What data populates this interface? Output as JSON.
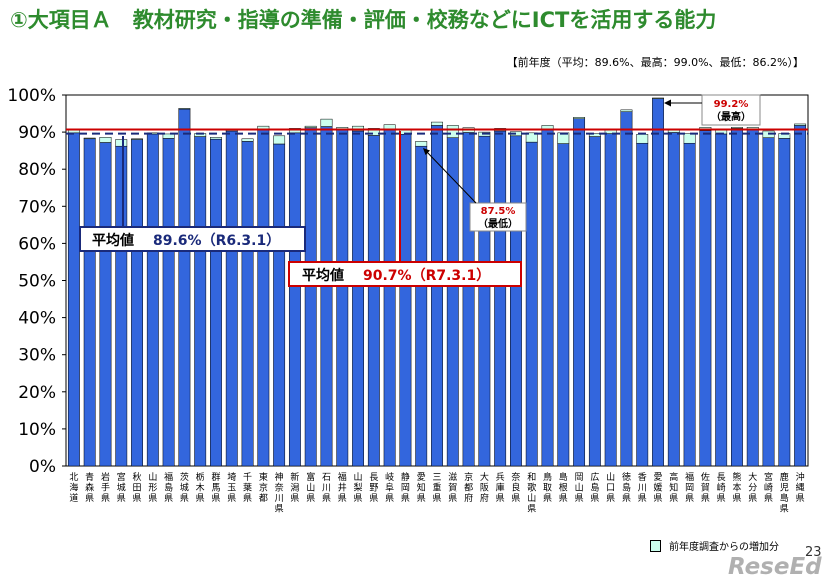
{
  "slide": {
    "title": "①大項目Ａ　教材研究・指導の準備・評価・校務などにICTを活用する能力",
    "prev_year_note": "【前年度（平均：89.6%、最高：99.0%、最低：86.2%）】",
    "legend_label": "前年度調査からの増加分",
    "page_number": "23",
    "logo_text": "ReseEd"
  },
  "colors": {
    "bar": "#3366dd",
    "bar_increase": "#ccffee",
    "title": "#2e8b2e",
    "avg_line_current": "#cc0000",
    "avg_line_prev": "#1a2a7a"
  },
  "chart_data": {
    "type": "bar",
    "categories": [
      "北海道",
      "青森県",
      "岩手県",
      "宮城県",
      "秋田県",
      "山形県",
      "福島県",
      "茨城県",
      "栃木県",
      "群馬県",
      "埼玉県",
      "千葉県",
      "東京都",
      "神奈川県",
      "新潟県",
      "富山県",
      "石川県",
      "福井県",
      "山梨県",
      "長野県",
      "岐阜県",
      "静岡県",
      "愛知県",
      "三重県",
      "滋賀県",
      "京都府",
      "大阪府",
      "兵庫県",
      "奈良県",
      "和歌山県",
      "鳥取県",
      "島根県",
      "岡山県",
      "広島県",
      "山口県",
      "徳島県",
      "香川県",
      "愛媛県",
      "高知県",
      "福岡県",
      "佐賀県",
      "長崎県",
      "熊本県",
      "大分県",
      "宮崎県",
      "鹿児島県",
      "沖縄県"
    ],
    "series": [
      {
        "values": [
          89.8,
          88.2,
          87.2,
          86.2,
          88.0,
          89.5,
          88.3,
          96.2,
          88.8,
          88.1,
          90.3,
          87.5,
          90.5,
          86.8,
          89.8,
          91.2,
          91.5,
          90.6,
          90.3,
          89.1,
          90.6,
          89.4,
          86.2,
          91.8,
          88.5,
          89.9,
          88.9,
          90.3,
          89.0,
          87.3,
          90.8,
          86.9,
          93.6,
          88.8,
          89.6,
          95.5,
          87.0,
          99.0,
          89.9,
          87.0,
          90.4,
          89.5,
          91.0,
          90.7,
          88.5,
          88.3,
          91.8
        ]
      },
      {
        "values": [
          90.9,
          88.4,
          88.6,
          88.0,
          88.2,
          89.8,
          89.5,
          96.4,
          89.6,
          88.6,
          90.5,
          88.2,
          91.6,
          89.0,
          91.0,
          91.6,
          93.5,
          91.3,
          91.6,
          91.0,
          92.0,
          90.5,
          87.5,
          92.7,
          91.8,
          91.2,
          90.0,
          91.0,
          90.1,
          89.8,
          91.8,
          89.8,
          94.0,
          89.6,
          90.5,
          96.0,
          89.4,
          99.2,
          90.5,
          89.6,
          91.3,
          90.7,
          91.3,
          91.3,
          90.3,
          89.6,
          92.2
        ]
      }
    ],
    "ylim": [
      0,
      100
    ],
    "yticks": [
      "0%",
      "10%",
      "20%",
      "30%",
      "40%",
      "50%",
      "60%",
      "70%",
      "80%",
      "90%",
      "100%"
    ],
    "avg_current": 90.7,
    "avg_prev": 89.6,
    "annotations": {
      "avg_prev_label": "平均値",
      "avg_prev_value": "89.6%（R6.3.1）",
      "avg_current_label": "平均値",
      "avg_current_value": "90.7%（R7.3.1）",
      "max_value": "99.2%",
      "max_label": "（最高）",
      "min_value": "87.5%",
      "min_label": "（最低）"
    }
  }
}
